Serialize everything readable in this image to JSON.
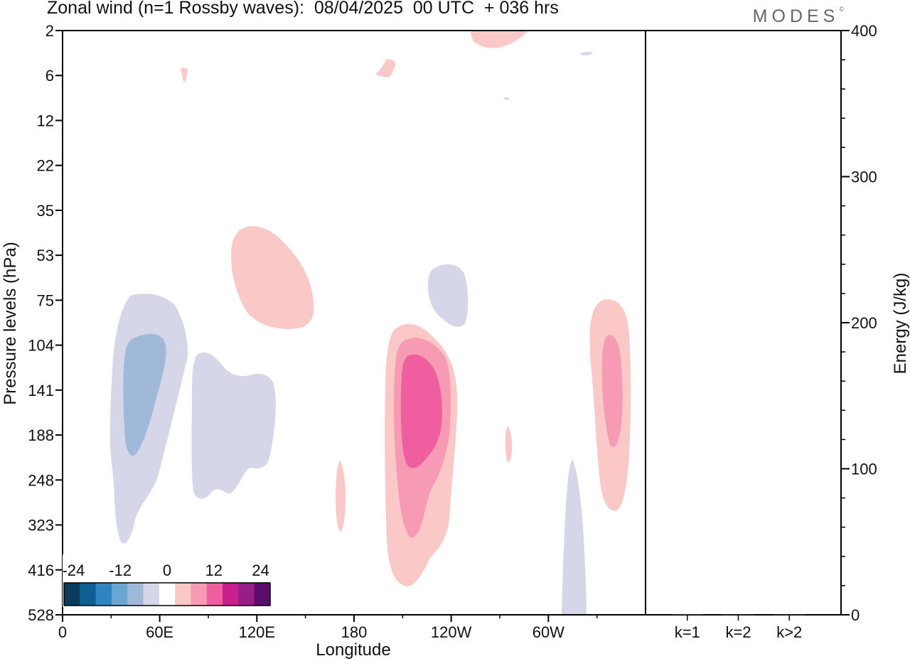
{
  "title": "Zonal wind (n=1 Rossby waves):  08/04/2025  00 UTC  + 036 hrs",
  "brand": "MODES",
  "brand_mark": "©",
  "chart_data": [
    {
      "type": "heatmap",
      "title": "Zonal wind (n=1 Rossby waves):  08/04/2025  00 UTC  + 036 hrs",
      "xlabel": "Longitude",
      "ylabel": "Pressure levels (hPa)",
      "x_ticks": [
        "0",
        "60E",
        "120E",
        "180",
        "120W",
        "60W"
      ],
      "y_ticks": [
        "2",
        "6",
        "12",
        "22",
        "35",
        "53",
        "75",
        "104",
        "141",
        "188",
        "248",
        "323",
        "416",
        "528"
      ],
      "colorbar": {
        "labels": [
          "-24",
          "-12",
          "0",
          "12",
          "24"
        ],
        "colors": [
          "#0a3a5c",
          "#0e5f93",
          "#2e86c1",
          "#6aa6cf",
          "#a0b9d8",
          "#d5d7e8",
          "#ffffff",
          "#fac8c6",
          "#f79ab4",
          "#ef5e9e",
          "#c7208b",
          "#961e84",
          "#5a0e6b"
        ]
      },
      "contour_regions": [
        {
          "name": "neg-outer-a",
          "level": -6,
          "lon_range": [
            30,
            78
          ],
          "pressure_range": [
            75,
            416
          ]
        },
        {
          "name": "neg-inner-a",
          "level": -12,
          "lon_range": [
            37,
            63
          ],
          "pressure_range": [
            104,
            220
          ]
        },
        {
          "name": "neg-outer-b",
          "level": -6,
          "lon_range": [
            80,
            133
          ],
          "pressure_range": [
            120,
            300
          ]
        },
        {
          "name": "pos-outer-c",
          "level": 6,
          "lon_range": [
            100,
            155
          ],
          "pressure_range": [
            35,
            104
          ]
        },
        {
          "name": "neg-outer-d",
          "level": -6,
          "lon_range": [
            225,
            250
          ],
          "pressure_range": [
            53,
            95
          ]
        },
        {
          "name": "pos-outer-e",
          "level": 6,
          "lon_range": [
            200,
            252
          ],
          "pressure_range": [
            90,
            500
          ]
        },
        {
          "name": "pos-mid-e",
          "level": 12,
          "lon_range": [
            207,
            246
          ],
          "pressure_range": [
            104,
            350
          ]
        },
        {
          "name": "pos-inner-e",
          "level": 18,
          "lon_range": [
            210,
            232
          ],
          "pressure_range": [
            120,
            240
          ]
        },
        {
          "name": "pos-outer-f",
          "level": 6,
          "lon_range": [
            325,
            352
          ],
          "pressure_range": [
            75,
            300
          ]
        },
        {
          "name": "pos-mid-f",
          "level": 12,
          "lon_range": [
            332,
            346
          ],
          "pressure_range": [
            100,
            230
          ]
        },
        {
          "name": "neg-outer-g",
          "level": -6,
          "lon_range": [
            308,
            322
          ],
          "pressure_range": [
            240,
            528
          ]
        }
      ]
    },
    {
      "type": "bar",
      "categories": [
        "k=1",
        "k=2",
        "k>2"
      ],
      "values": [
        0.5,
        0.3,
        0.3
      ],
      "ylabel": "Energy (J/kg)",
      "ylim": [
        0,
        400
      ],
      "y_ticks": [
        "0",
        "100",
        "200",
        "300",
        "400"
      ]
    }
  ]
}
